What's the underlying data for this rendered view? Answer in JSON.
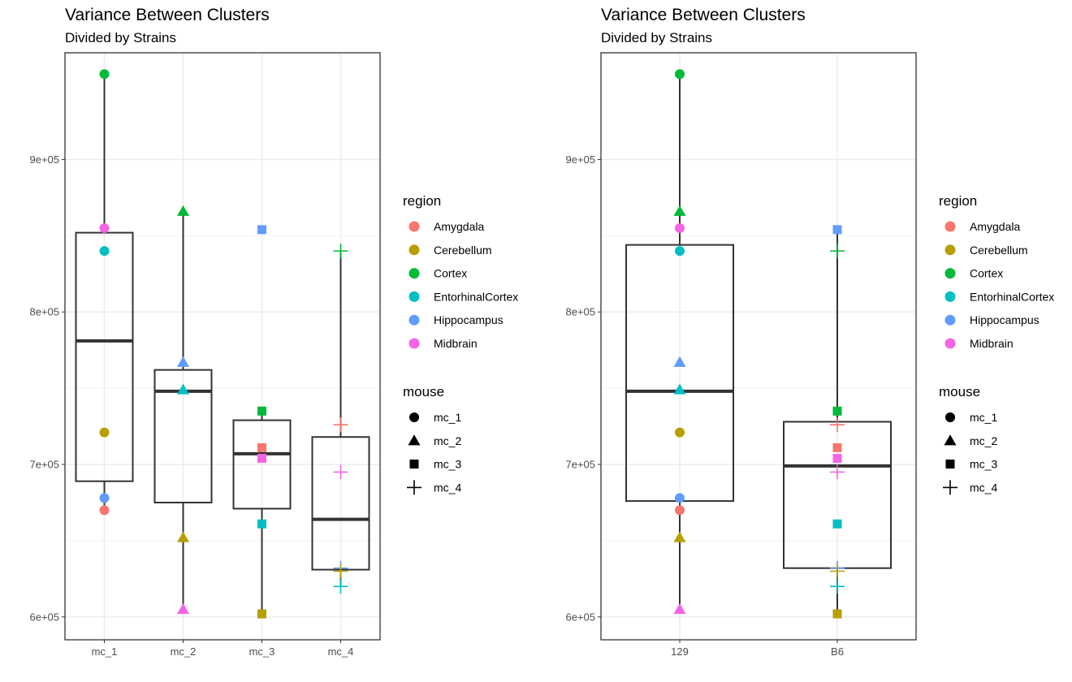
{
  "chart_data": [
    {
      "type": "box",
      "title": "Variance Between Clusters",
      "subtitle": "Divided by Strains",
      "xlabel": "",
      "ylabel": "",
      "categories": [
        "mc_1",
        "mc_2",
        "mc_3",
        "mc_4"
      ],
      "ylim": [
        585000,
        970000
      ],
      "yticks": [
        600000,
        700000,
        800000,
        900000
      ],
      "ytick_labels": [
        "6e+05",
        "7e+05",
        "8e+05",
        "9e+05"
      ],
      "grid": true,
      "legend_position": "right",
      "boxes": [
        {
          "category": "mc_1",
          "lower_whisker": 670000,
          "q1": 689000,
          "median": 781000,
          "q3": 852000,
          "upper_whisker": 956000
        },
        {
          "category": "mc_2",
          "lower_whisker": 605000,
          "q1": 675000,
          "median": 748000,
          "q3": 762000,
          "upper_whisker": 866000
        },
        {
          "category": "mc_3",
          "lower_whisker": 602000,
          "q1": 671000,
          "median": 707000,
          "q3": 729000,
          "upper_whisker": 735000
        },
        {
          "category": "mc_4",
          "lower_whisker": 620000,
          "q1": 631000,
          "median": 664000,
          "q3": 718000,
          "upper_whisker": 840000
        }
      ],
      "points": [
        {
          "x": "mc_1",
          "region": "Cortex",
          "mouse": "mc_1",
          "y": 956000
        },
        {
          "x": "mc_1",
          "region": "Midbrain",
          "mouse": "mc_1",
          "y": 855000
        },
        {
          "x": "mc_1",
          "region": "EntorhinalCortex",
          "mouse": "mc_1",
          "y": 840000
        },
        {
          "x": "mc_1",
          "region": "Cerebellum",
          "mouse": "mc_1",
          "y": 721000
        },
        {
          "x": "mc_1",
          "region": "Hippocampus",
          "mouse": "mc_1",
          "y": 678000
        },
        {
          "x": "mc_1",
          "region": "Amygdala",
          "mouse": "mc_1",
          "y": 670000
        },
        {
          "x": "mc_2",
          "region": "Cortex",
          "mouse": "mc_2",
          "y": 866000
        },
        {
          "x": "mc_2",
          "region": "Hippocampus",
          "mouse": "mc_2",
          "y": 767000
        },
        {
          "x": "mc_2",
          "region": "EntorhinalCortex",
          "mouse": "mc_2",
          "y": 749000
        },
        {
          "x": "mc_2",
          "region": "Cerebellum",
          "mouse": "mc_2",
          "y": 652000
        },
        {
          "x": "mc_2",
          "region": "Midbrain",
          "mouse": "mc_2",
          "y": 605000
        },
        {
          "x": "mc_3",
          "region": "Hippocampus",
          "mouse": "mc_3",
          "y": 854000
        },
        {
          "x": "mc_3",
          "region": "Cortex",
          "mouse": "mc_3",
          "y": 735000
        },
        {
          "x": "mc_3",
          "region": "Amygdala",
          "mouse": "mc_3",
          "y": 711000
        },
        {
          "x": "mc_3",
          "region": "Midbrain",
          "mouse": "mc_3",
          "y": 704000
        },
        {
          "x": "mc_3",
          "region": "EntorhinalCortex",
          "mouse": "mc_3",
          "y": 661000
        },
        {
          "x": "mc_3",
          "region": "Cerebellum",
          "mouse": "mc_3",
          "y": 602000
        },
        {
          "x": "mc_4",
          "region": "Cortex",
          "mouse": "mc_4",
          "y": 840000
        },
        {
          "x": "mc_4",
          "region": "Amygdala",
          "mouse": "mc_4",
          "y": 726000
        },
        {
          "x": "mc_4",
          "region": "Midbrain",
          "mouse": "mc_4",
          "y": 695000
        },
        {
          "x": "mc_4",
          "region": "Hippocampus",
          "mouse": "mc_4",
          "y": 632000
        },
        {
          "x": "mc_4",
          "region": "Cerebellum",
          "mouse": "mc_4",
          "y": 630000
        },
        {
          "x": "mc_4",
          "region": "EntorhinalCortex",
          "mouse": "mc_4",
          "y": 620000
        }
      ]
    },
    {
      "type": "box",
      "title": "Variance Between Clusters",
      "subtitle": "Divided by Strains",
      "xlabel": "",
      "ylabel": "",
      "categories": [
        "129",
        "B6"
      ],
      "ylim": [
        585000,
        970000
      ],
      "yticks": [
        600000,
        700000,
        800000,
        900000
      ],
      "ytick_labels": [
        "6e+05",
        "7e+05",
        "8e+05",
        "9e+05"
      ],
      "grid": true,
      "legend_position": "right",
      "boxes": [
        {
          "category": "129",
          "lower_whisker": 605000,
          "q1": 676000,
          "median": 748000,
          "q3": 844000,
          "upper_whisker": 956000
        },
        {
          "category": "B6",
          "lower_whisker": 602000,
          "q1": 632000,
          "median": 699000,
          "q3": 728000,
          "upper_whisker": 854000
        }
      ],
      "points": [
        {
          "x": "129",
          "region": "Cortex",
          "mouse": "mc_1",
          "y": 956000
        },
        {
          "x": "129",
          "region": "Midbrain",
          "mouse": "mc_1",
          "y": 855000
        },
        {
          "x": "129",
          "region": "EntorhinalCortex",
          "mouse": "mc_1",
          "y": 840000
        },
        {
          "x": "129",
          "region": "Cerebellum",
          "mouse": "mc_1",
          "y": 721000
        },
        {
          "x": "129",
          "region": "Hippocampus",
          "mouse": "mc_1",
          "y": 678000
        },
        {
          "x": "129",
          "region": "Amygdala",
          "mouse": "mc_1",
          "y": 670000
        },
        {
          "x": "129",
          "region": "Cortex",
          "mouse": "mc_2",
          "y": 866000
        },
        {
          "x": "129",
          "region": "Hippocampus",
          "mouse": "mc_2",
          "y": 767000
        },
        {
          "x": "129",
          "region": "EntorhinalCortex",
          "mouse": "mc_2",
          "y": 749000
        },
        {
          "x": "129",
          "region": "Cerebellum",
          "mouse": "mc_2",
          "y": 652000
        },
        {
          "x": "129",
          "region": "Midbrain",
          "mouse": "mc_2",
          "y": 605000
        },
        {
          "x": "B6",
          "region": "Hippocampus",
          "mouse": "mc_3",
          "y": 854000
        },
        {
          "x": "B6",
          "region": "Cortex",
          "mouse": "mc_3",
          "y": 735000
        },
        {
          "x": "B6",
          "region": "Amygdala",
          "mouse": "mc_3",
          "y": 711000
        },
        {
          "x": "B6",
          "region": "Midbrain",
          "mouse": "mc_3",
          "y": 704000
        },
        {
          "x": "B6",
          "region": "EntorhinalCortex",
          "mouse": "mc_3",
          "y": 661000
        },
        {
          "x": "B6",
          "region": "Cerebellum",
          "mouse": "mc_3",
          "y": 602000
        },
        {
          "x": "B6",
          "region": "Cortex",
          "mouse": "mc_4",
          "y": 840000
        },
        {
          "x": "B6",
          "region": "Amygdala",
          "mouse": "mc_4",
          "y": 726000
        },
        {
          "x": "B6",
          "region": "Midbrain",
          "mouse": "mc_4",
          "y": 695000
        },
        {
          "x": "B6",
          "region": "Hippocampus",
          "mouse": "mc_4",
          "y": 632000
        },
        {
          "x": "B6",
          "region": "Cerebellum",
          "mouse": "mc_4",
          "y": 630000
        },
        {
          "x": "B6",
          "region": "EntorhinalCortex",
          "mouse": "mc_4",
          "y": 620000
        }
      ]
    }
  ],
  "legend": {
    "region_title": "region",
    "regions": [
      {
        "name": "Amygdala",
        "color": "#F8766D"
      },
      {
        "name": "Cerebellum",
        "color": "#B79F00"
      },
      {
        "name": "Cortex",
        "color": "#00BA38"
      },
      {
        "name": "EntorhinalCortex",
        "color": "#00BFC4"
      },
      {
        "name": "Hippocampus",
        "color": "#619CFF"
      },
      {
        "name": "Midbrain",
        "color": "#F564E3"
      }
    ],
    "mouse_title": "mouse",
    "mice": [
      {
        "name": "mc_1",
        "shape": "circle"
      },
      {
        "name": "mc_2",
        "shape": "triangle"
      },
      {
        "name": "mc_3",
        "shape": "square"
      },
      {
        "name": "mc_4",
        "shape": "plus"
      }
    ]
  }
}
